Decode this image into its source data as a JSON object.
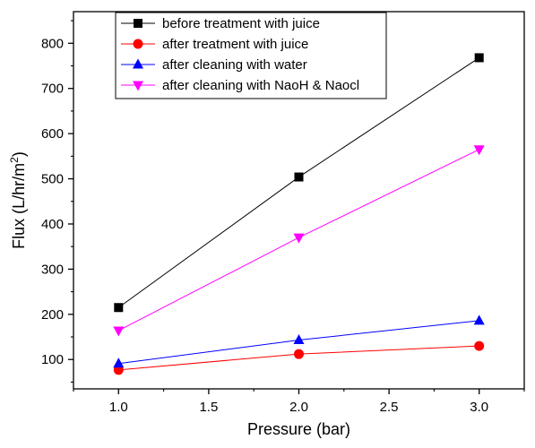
{
  "chart_data": {
    "type": "line",
    "title": "",
    "xlabel": "Pressure (bar)",
    "ylabel_parts": [
      "Flux (L/hr/m",
      "2",
      ")"
    ],
    "xlim": [
      0.75,
      3.25
    ],
    "ylim": [
      35,
      870
    ],
    "x_ticks": [
      1.0,
      1.5,
      2.0,
      2.5,
      3.0
    ],
    "x_tick_labels": [
      "1.0",
      "1.5",
      "2.0",
      "2.5",
      "3.0"
    ],
    "y_ticks": [
      100,
      200,
      300,
      400,
      500,
      600,
      700,
      800
    ],
    "y_tick_labels": [
      "100",
      "200",
      "300",
      "400",
      "500",
      "600",
      "700",
      "800"
    ],
    "x_minor_ticks": [
      0.75,
      1.25,
      1.75,
      2.25,
      2.75,
      3.25
    ],
    "y_minor_ticks": [
      50,
      150,
      250,
      350,
      450,
      550,
      650,
      750,
      850
    ],
    "x": [
      1.0,
      2.0,
      3.0
    ],
    "legend_position": "top-left",
    "series": [
      {
        "name": "before treatment with juice",
        "values": [
          215,
          504,
          768
        ],
        "color": "#000000",
        "marker": "square"
      },
      {
        "name": "after treatment with juice",
        "values": [
          77,
          112,
          130
        ],
        "color": "#ff0000",
        "marker": "circle"
      },
      {
        "name": "after cleaning with water",
        "values": [
          91,
          143,
          186
        ],
        "color": "#0000ff",
        "marker": "triangle-up"
      },
      {
        "name": "after cleaning with NaoH & Naocl",
        "values": [
          164,
          370,
          565
        ],
        "color": "#ff00ff",
        "marker": "triangle-down"
      }
    ]
  }
}
